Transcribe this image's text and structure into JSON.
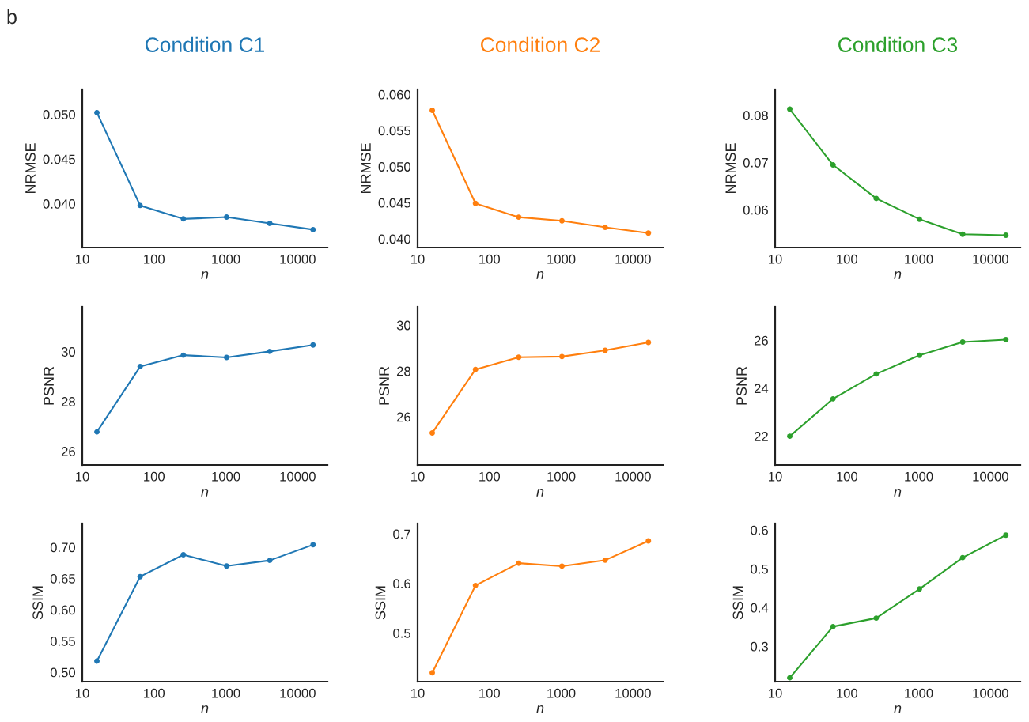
{
  "chart_data": [
    {
      "type": "line",
      "title": "Condition C1",
      "ylabel": "NRMSE",
      "xlabel": "n",
      "annotations": [
        "b"
      ],
      "x": [
        16,
        64,
        256,
        1024,
        4096,
        16384
      ],
      "series": [
        {
          "color": "#1f77b4",
          "values": [
            0.0502,
            0.0398,
            0.0383,
            0.0385,
            0.0378,
            0.0371
          ]
        }
      ],
      "xlim": [
        10,
        26000
      ],
      "xticks": [
        10,
        100,
        1000,
        10000
      ],
      "ylim": [
        0.0351,
        0.0528
      ],
      "yticks": [
        {
          "value": 0.04,
          "label": "0.040"
        },
        {
          "value": 0.045,
          "label": "0.045"
        },
        {
          "value": 0.05,
          "label": "0.050"
        }
      ],
      "log": "x",
      "grid": false,
      "legend": false,
      "marker": "circle",
      "line_style": "solid"
    },
    {
      "type": "line",
      "title": "Condition C2",
      "ylabel": "NRMSE",
      "xlabel": "n",
      "x": [
        16,
        64,
        256,
        1024,
        4096,
        16384
      ],
      "series": [
        {
          "color": "#ff7f0e",
          "values": [
            0.0578,
            0.0449,
            0.043,
            0.0425,
            0.0416,
            0.0408
          ]
        }
      ],
      "xlim": [
        10,
        26000
      ],
      "xticks": [
        10,
        100,
        1000,
        10000
      ],
      "ylim": [
        0.0388,
        0.0607
      ],
      "yticks": [
        {
          "value": 0.04,
          "label": "0.040"
        },
        {
          "value": 0.045,
          "label": "0.045"
        },
        {
          "value": 0.05,
          "label": "0.050"
        },
        {
          "value": 0.055,
          "label": "0.055"
        },
        {
          "value": 0.06,
          "label": "0.060"
        }
      ],
      "log": "x",
      "grid": false,
      "legend": false,
      "marker": "circle",
      "line_style": "solid"
    },
    {
      "type": "line",
      "title": "Condition C3",
      "ylabel": "NRMSE",
      "xlabel": "n",
      "x": [
        16,
        64,
        256,
        1024,
        4096,
        16384
      ],
      "series": [
        {
          "color": "#2ca02c",
          "values": [
            0.0813,
            0.0695,
            0.0624,
            0.058,
            0.0548,
            0.0546
          ]
        }
      ],
      "xlim": [
        10,
        26000
      ],
      "xticks": [
        10,
        100,
        1000,
        10000
      ],
      "ylim": [
        0.052,
        0.0855
      ],
      "yticks": [
        0.06,
        0.07,
        0.08
      ],
      "log": "x",
      "grid": false,
      "legend": false,
      "marker": "circle",
      "line_style": "solid"
    },
    {
      "type": "line",
      "ylabel": "PSNR",
      "xlabel": "n",
      "x": [
        16,
        64,
        256,
        1024,
        4096,
        16384
      ],
      "series": [
        {
          "color": "#1f77b4",
          "values": [
            26.78,
            29.4,
            29.86,
            29.77,
            30.01,
            30.27
          ]
        }
      ],
      "xlim": [
        10,
        26000
      ],
      "xticks": [
        10,
        100,
        1000,
        10000
      ],
      "ylim": [
        25.45,
        31.8
      ],
      "yticks": [
        26,
        28,
        30
      ],
      "log": "x",
      "grid": false,
      "legend": false,
      "marker": "circle",
      "line_style": "solid"
    },
    {
      "type": "line",
      "ylabel": "PSNR",
      "xlabel": "n",
      "x": [
        16,
        64,
        256,
        1024,
        4096,
        16384
      ],
      "series": [
        {
          "color": "#ff7f0e",
          "values": [
            25.3,
            28.07,
            28.6,
            28.63,
            28.9,
            29.25
          ]
        }
      ],
      "xlim": [
        10,
        26000
      ],
      "xticks": [
        10,
        100,
        1000,
        10000
      ],
      "ylim": [
        23.9,
        30.8
      ],
      "yticks": [
        26,
        28,
        30
      ],
      "log": "x",
      "grid": false,
      "legend": false,
      "marker": "circle",
      "line_style": "solid"
    },
    {
      "type": "line",
      "ylabel": "PSNR",
      "xlabel": "n",
      "x": [
        16,
        64,
        256,
        1024,
        4096,
        16384
      ],
      "series": [
        {
          "color": "#2ca02c",
          "values": [
            22.0,
            23.56,
            24.6,
            25.38,
            25.93,
            26.03
          ]
        }
      ],
      "xlim": [
        10,
        26000
      ],
      "xticks": [
        10,
        100,
        1000,
        10000
      ],
      "ylim": [
        20.8,
        27.4
      ],
      "yticks": [
        22,
        24,
        26
      ],
      "log": "x",
      "grid": false,
      "legend": false,
      "marker": "circle",
      "line_style": "solid"
    },
    {
      "type": "line",
      "ylabel": "SSIM",
      "xlabel": "n",
      "x": [
        16,
        64,
        256,
        1024,
        4096,
        16384
      ],
      "series": [
        {
          "color": "#1f77b4",
          "values": [
            0.518,
            0.653,
            0.688,
            0.67,
            0.679,
            0.704
          ]
        }
      ],
      "xlim": [
        10,
        26000
      ],
      "xticks": [
        10,
        100,
        1000,
        10000
      ],
      "ylim": [
        0.485,
        0.738
      ],
      "yticks": [
        {
          "value": 0.5,
          "label": "0.50"
        },
        {
          "value": 0.55,
          "label": "0.55"
        },
        {
          "value": 0.6,
          "label": "0.60"
        },
        {
          "value": 0.65,
          "label": "0.65"
        },
        {
          "value": 0.7,
          "label": "0.70"
        }
      ],
      "log": "x",
      "grid": false,
      "legend": false,
      "marker": "circle",
      "line_style": "solid"
    },
    {
      "type": "line",
      "ylabel": "SSIM",
      "xlabel": "n",
      "x": [
        16,
        64,
        256,
        1024,
        4096,
        16384
      ],
      "series": [
        {
          "color": "#ff7f0e",
          "values": [
            0.42,
            0.596,
            0.641,
            0.635,
            0.647,
            0.686
          ]
        }
      ],
      "xlim": [
        10,
        26000
      ],
      "xticks": [
        10,
        100,
        1000,
        10000
      ],
      "ylim": [
        0.402,
        0.721
      ],
      "yticks": [
        0.5,
        0.6,
        0.7
      ],
      "log": "x",
      "grid": false,
      "legend": false,
      "marker": "circle",
      "line_style": "solid"
    },
    {
      "type": "line",
      "ylabel": "SSIM",
      "xlabel": "n",
      "x": [
        16,
        64,
        256,
        1024,
        4096,
        16384
      ],
      "series": [
        {
          "color": "#2ca02c",
          "values": [
            0.219,
            0.351,
            0.373,
            0.448,
            0.529,
            0.587
          ]
        }
      ],
      "xlim": [
        10,
        26000
      ],
      "xticks": [
        10,
        100,
        1000,
        10000
      ],
      "ylim": [
        0.209,
        0.617
      ],
      "yticks": [
        0.3,
        0.4,
        0.5,
        0.6
      ],
      "log": "x",
      "grid": false,
      "legend": false,
      "marker": "circle",
      "line_style": "solid"
    }
  ]
}
